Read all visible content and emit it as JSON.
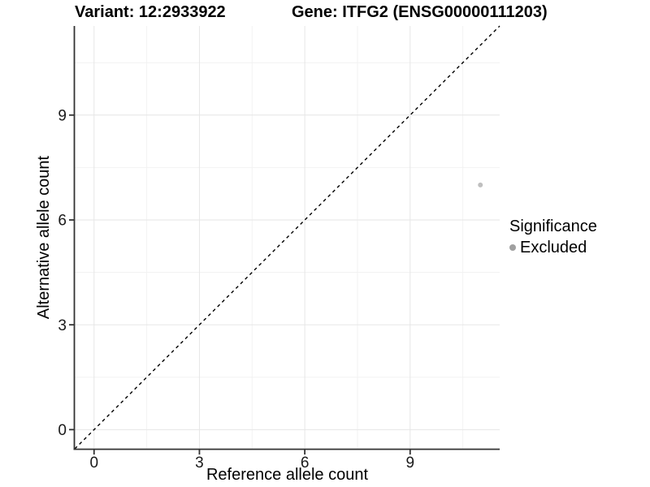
{
  "chart_data": {
    "type": "scatter",
    "titles": {
      "left": "Variant: 12:2933922",
      "right": "Gene: ITFG2 (ENSG00000111203)"
    },
    "xlabel": "Reference allele count",
    "ylabel": "Alternative allele count",
    "xlim": [
      -0.55,
      11.55
    ],
    "ylim": [
      -0.55,
      11.55
    ],
    "x_ticks": [
      0,
      3,
      6,
      9
    ],
    "y_ticks": [
      0,
      3,
      6,
      9
    ],
    "x_minor_gridlines": [
      1.5,
      4.5,
      7.5,
      10.5
    ],
    "y_minor_gridlines": [
      1.5,
      4.5,
      7.5,
      10.5
    ],
    "grid": "on",
    "legend_position": "right",
    "reference_line": {
      "type": "identity",
      "slope": 1,
      "intercept": 0,
      "style": "dashed",
      "color": "#000000"
    },
    "series": [
      {
        "name": "Excluded",
        "color": "#bfbfbf",
        "points": [
          {
            "x": 11,
            "y": 7
          }
        ]
      }
    ],
    "legend": {
      "title": "Significance",
      "items": [
        {
          "label": "Excluded",
          "color": "#a0a0a0"
        }
      ]
    },
    "colors": {
      "background": "#ffffff",
      "grid_major": "#e6e6e6",
      "grid_minor": "#f2f2f2",
      "axis_line": "#333333",
      "tick_label": "#1a1a1a"
    }
  }
}
